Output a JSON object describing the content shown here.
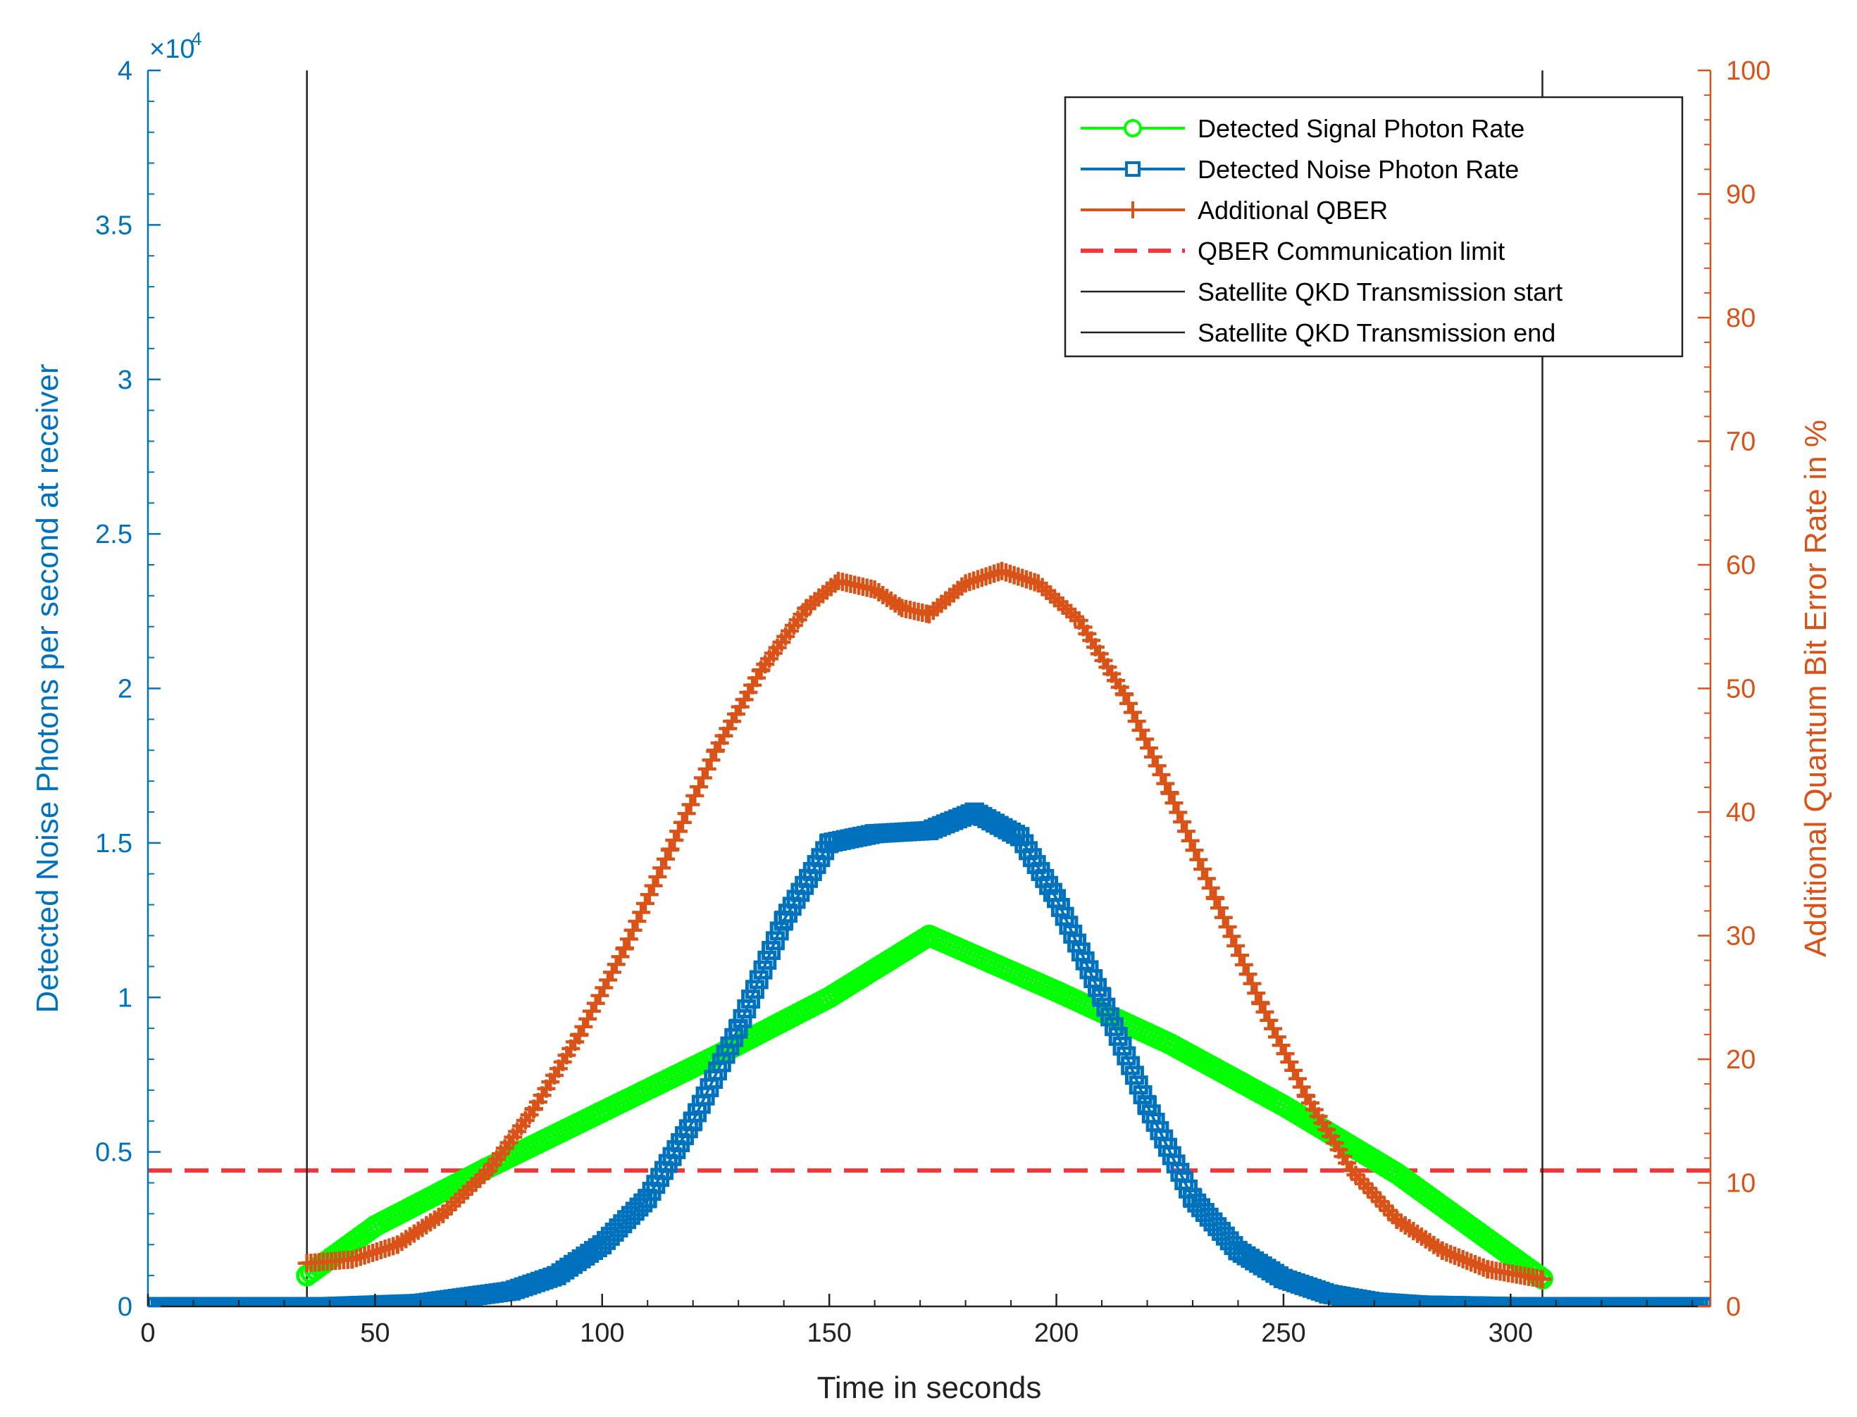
{
  "chart_data": {
    "type": "line",
    "title": "",
    "xlabel": "Time in seconds",
    "ylabel_left": "Detected Noise Photons per second at receiver",
    "ylabel_right": "Additional Quantum Bit Error Rate in %",
    "x_range": [
      0,
      344
    ],
    "x_ticks": [
      0,
      50,
      100,
      150,
      200,
      250,
      300
    ],
    "x_tick_labels": [
      "0",
      "50",
      "100",
      "150",
      "200",
      "250",
      "300"
    ],
    "ylim_left": [
      0,
      40000
    ],
    "left_ticks": [
      0,
      5000,
      10000,
      15000,
      20000,
      25000,
      30000,
      35000,
      40000
    ],
    "left_tick_labels": [
      "0",
      "0.5",
      "1",
      "1.5",
      "2",
      "2.5",
      "3",
      "3.5",
      "4"
    ],
    "left_exponent_label": "×10",
    "left_exponent_power": "4",
    "ylim_right": [
      0,
      100
    ],
    "right_ticks": [
      0,
      10,
      20,
      30,
      40,
      50,
      60,
      70,
      80,
      90,
      100
    ],
    "right_tick_labels": [
      "0",
      "10",
      "20",
      "30",
      "40",
      "50",
      "60",
      "70",
      "80",
      "90",
      "100"
    ],
    "left_axis_color": "#0072bd",
    "right_axis_color": "#d95319",
    "legend_position": "top-right",
    "series": [
      {
        "name": "Detected Signal Photon Rate",
        "axis": "left",
        "color": "#00ff00",
        "marker": "circle",
        "x": [
          35,
          50,
          75,
          100,
          125,
          150,
          172,
          200,
          225,
          250,
          275,
          307
        ],
        "values": [
          1000,
          2600,
          4500,
          6300,
          8100,
          10000,
          12000,
          10200,
          8500,
          6500,
          4300,
          900
        ]
      },
      {
        "name": "Detected Noise Photon Rate",
        "axis": "left",
        "color": "#0072bd",
        "marker": "square",
        "x": [
          0,
          40,
          60,
          80,
          90,
          100,
          110,
          120,
          130,
          140,
          150,
          160,
          172,
          182,
          192,
          200,
          210,
          220,
          230,
          240,
          250,
          260,
          270,
          280,
          300,
          344
        ],
        "values": [
          0,
          0,
          100,
          500,
          1000,
          2000,
          3500,
          6000,
          9000,
          12500,
          15000,
          15300,
          15400,
          16000,
          15200,
          13200,
          10000,
          6500,
          3500,
          1800,
          900,
          400,
          150,
          50,
          0,
          0
        ]
      },
      {
        "name": "Additional QBER",
        "axis": "right",
        "color": "#d95319",
        "marker": "plus",
        "x": [
          35,
          45,
          55,
          65,
          75,
          85,
          95,
          105,
          115,
          125,
          135,
          145,
          152,
          160,
          166,
          172,
          180,
          188,
          196,
          205,
          215,
          225,
          235,
          245,
          255,
          265,
          275,
          285,
          295,
          307
        ],
        "values": [
          3.5,
          3.8,
          5,
          7.5,
          11,
          16,
          22,
          29,
          37,
          45,
          51.5,
          56.5,
          58.7,
          58,
          56.5,
          56,
          58.5,
          59.5,
          58.5,
          55.5,
          49.5,
          41.5,
          33,
          24.5,
          17,
          11,
          7,
          4.5,
          3,
          2.2
        ]
      },
      {
        "name": "QBER Communication limit",
        "axis": "right",
        "color": "#ff3333",
        "line_style": "dashed",
        "x": [
          0,
          344
        ],
        "values": [
          11,
          11
        ]
      },
      {
        "name": "Satellite QKD Transmission start",
        "axis": "right",
        "color": "#222222",
        "line_style": "vertical",
        "x": [
          35,
          35
        ],
        "values": [
          0,
          100
        ]
      },
      {
        "name": "Satellite QKD Transmission end",
        "axis": "right",
        "color": "#222222",
        "line_style": "vertical",
        "x": [
          307,
          307
        ],
        "values": [
          0,
          100
        ]
      }
    ]
  }
}
